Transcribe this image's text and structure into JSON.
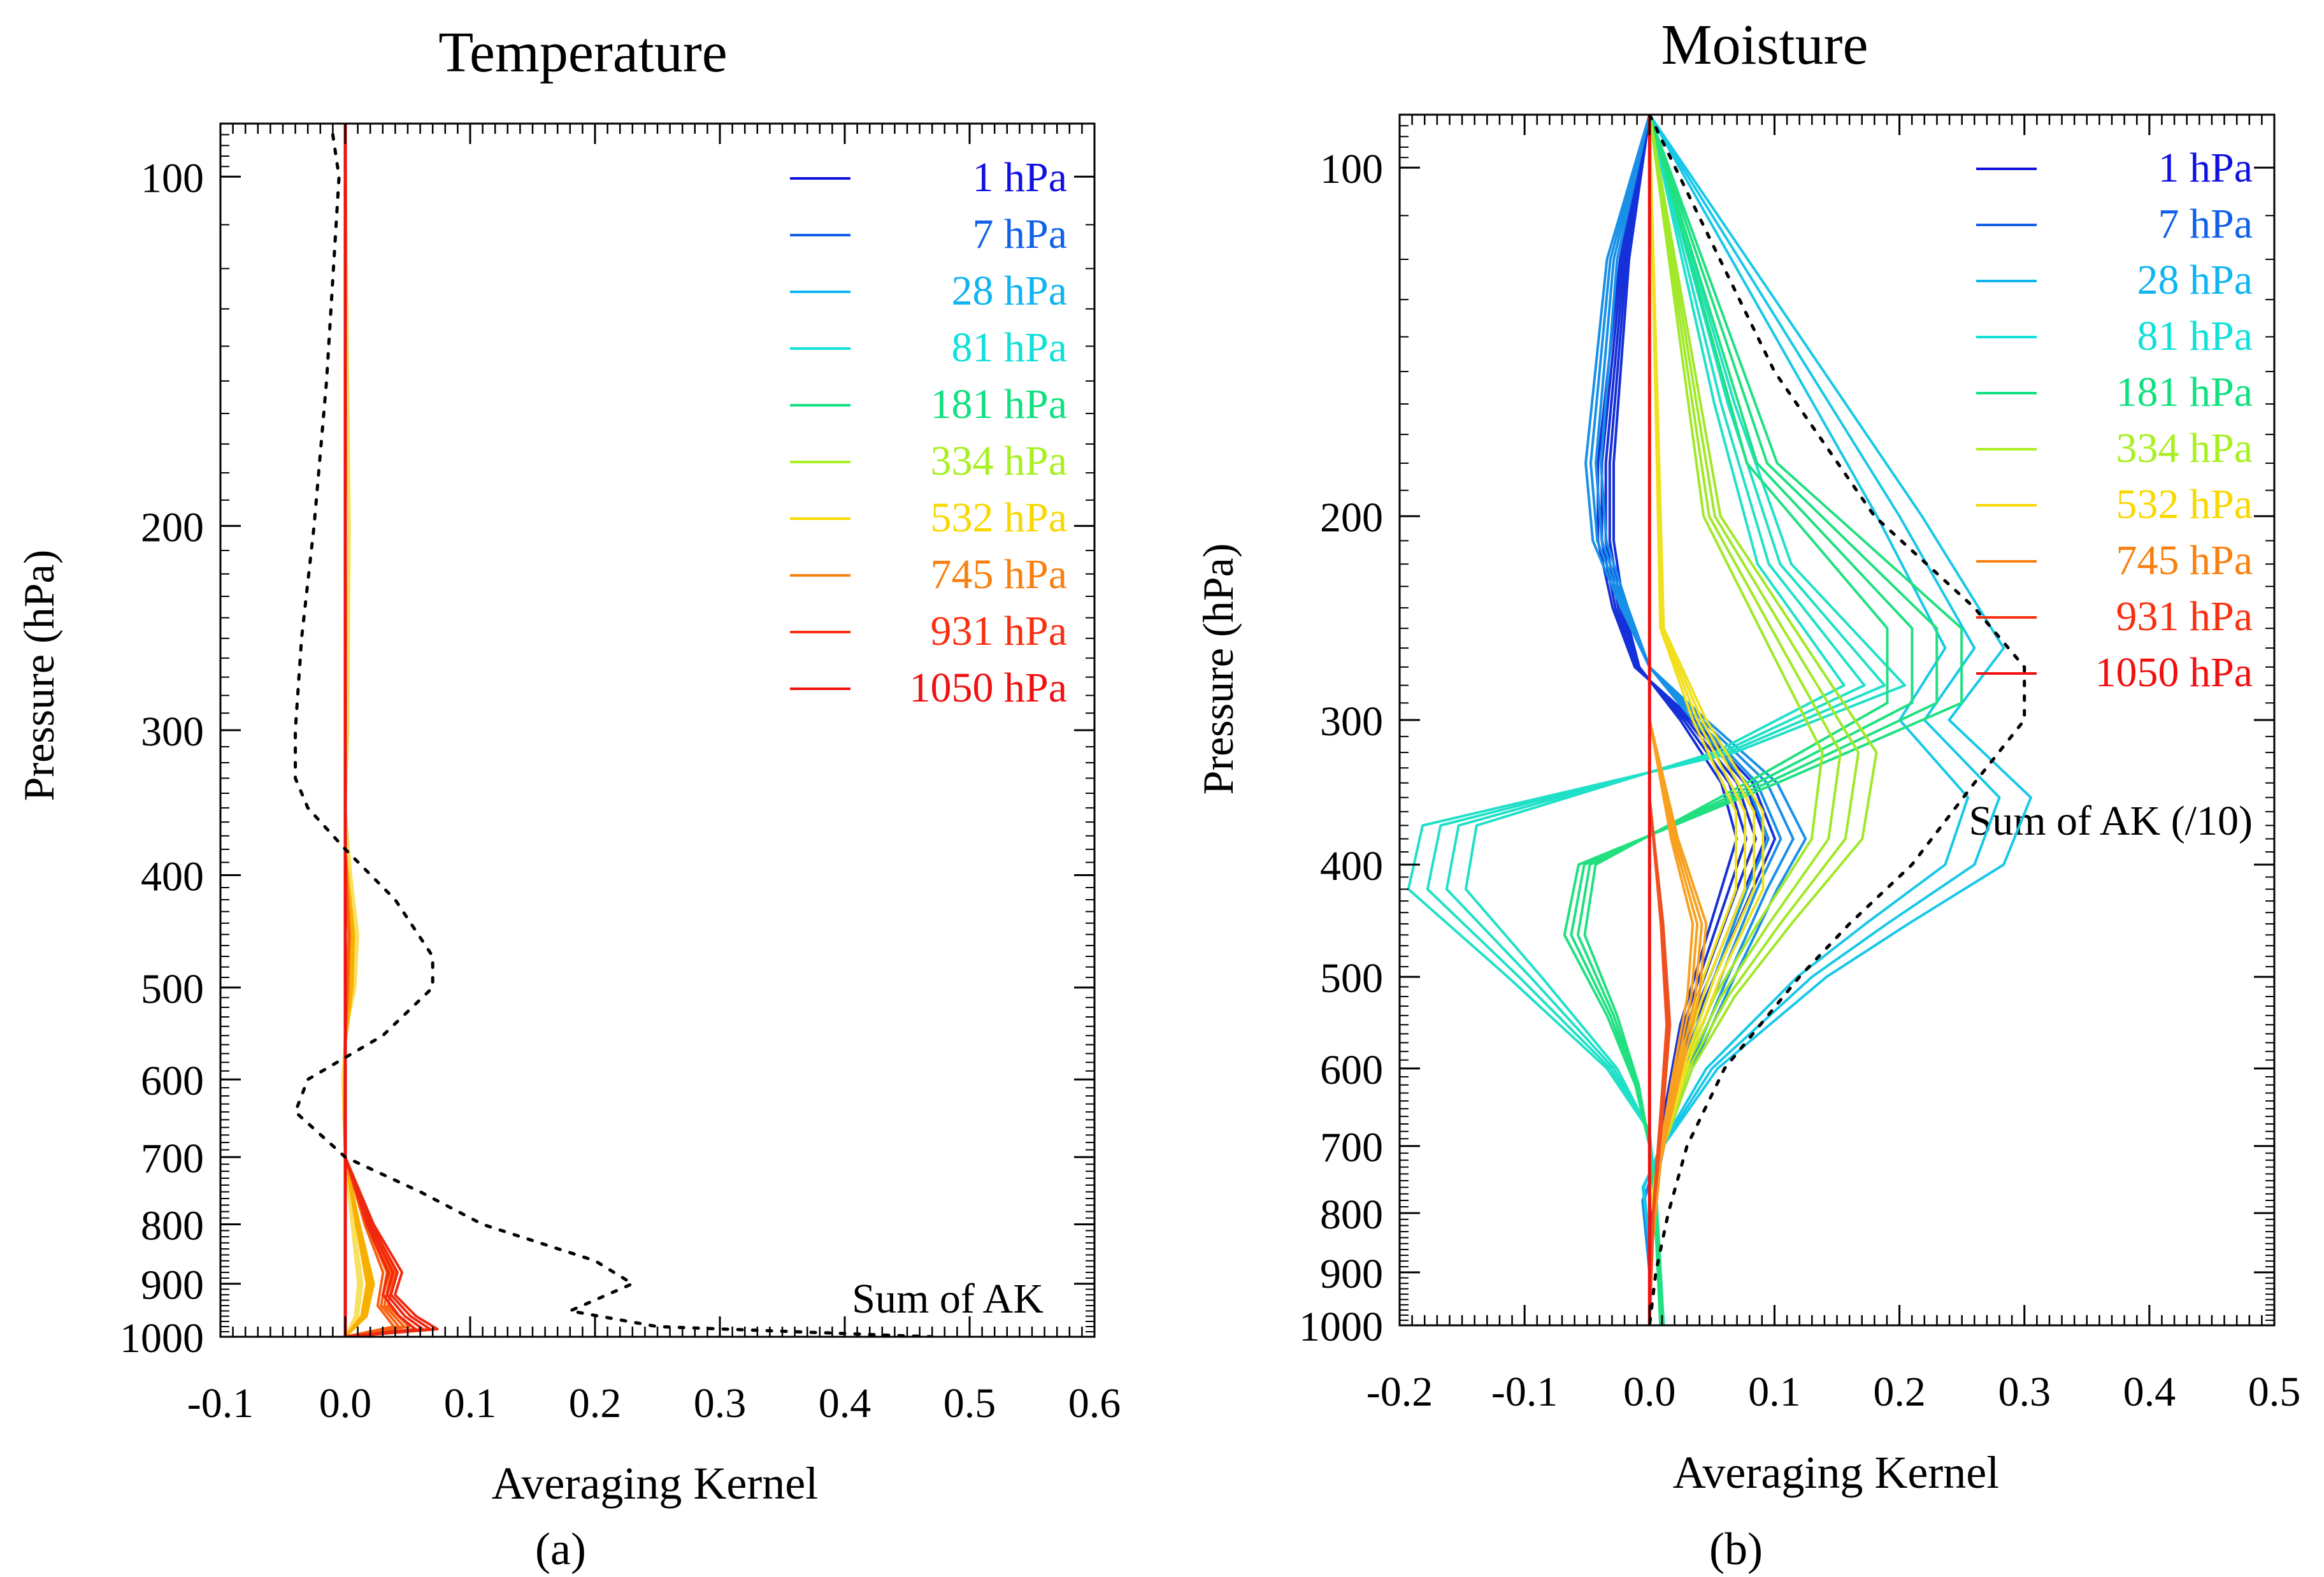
{
  "chart_data": [
    {
      "id": "temperature",
      "type": "line",
      "title": "Temperature",
      "panel_label": "(a)",
      "xlabel": "Averaging Kernel",
      "ylabel": "Pressure (hPa)",
      "xlim": [
        -0.1,
        0.6
      ],
      "ylim": [
        1000,
        90
      ],
      "yscale": "log",
      "x_ticks": [
        "-0.1",
        "0.0",
        "0.1",
        "0.2",
        "0.3",
        "0.4",
        "0.5",
        "0.6"
      ],
      "y_ticks": [
        "100",
        "200",
        "300",
        "400",
        "500",
        "600",
        "700",
        "800",
        "900",
        "1000"
      ],
      "legend_position": "top-right",
      "legend": [
        {
          "label": "1 hPa",
          "color": "#1010e0"
        },
        {
          "label": "7 hPa",
          "color": "#1060e8"
        },
        {
          "label": "28 hPa",
          "color": "#10b4f0"
        },
        {
          "label": "81 hPa",
          "color": "#10e0d8"
        },
        {
          "label": "181 hPa",
          "color": "#10e080"
        },
        {
          "label": "334 hPa",
          "color": "#a8f020"
        },
        {
          "label": "532 hPa",
          "color": "#f8d800"
        },
        {
          "label": "745 hPa",
          "color": "#f88010"
        },
        {
          "label": "931 hPa",
          "color": "#f83010"
        },
        {
          "label": "1050 hPa",
          "color": "#f01010"
        }
      ],
      "sum_label": "Sum of AK",
      "sum_curve": {
        "p": [
          92,
          100,
          150,
          200,
          250,
          300,
          330,
          350,
          380,
          420,
          470,
          500,
          550,
          600,
          640,
          700,
          750,
          800,
          860,
          900,
          950,
          980,
          1000
        ],
        "x": [
          -0.01,
          -0.005,
          -0.015,
          -0.025,
          -0.035,
          -0.04,
          -0.04,
          -0.03,
          0.0,
          0.04,
          0.07,
          0.07,
          0.03,
          -0.03,
          -0.04,
          0.0,
          0.06,
          0.11,
          0.2,
          0.23,
          0.18,
          0.25,
          0.47
        ]
      },
      "kernel_groups": [
        {
          "color": "#f8e060",
          "count": 4,
          "p": [
            92,
            200,
            300,
            350,
            400,
            450,
            500,
            550,
            600,
            700,
            800,
            900,
            960,
            1000
          ],
          "x": [
            0.0,
            0.003,
            0.002,
            0.0,
            0.004,
            0.009,
            0.007,
            0.0,
            -0.002,
            0.0,
            0.006,
            0.012,
            0.009,
            0.0
          ]
        },
        {
          "color": "#f8b000",
          "count": 4,
          "p": [
            92,
            300,
            380,
            450,
            500,
            560,
            650,
            700,
            800,
            900,
            960,
            1000
          ],
          "x": [
            0.0,
            0.0,
            0.0,
            0.006,
            0.005,
            0.0,
            -0.001,
            0.0,
            0.01,
            0.02,
            0.015,
            0.0
          ]
        },
        {
          "color": "#f86010",
          "count": 4,
          "p": [
            92,
            380,
            450,
            500,
            550,
            700,
            800,
            880,
            940,
            980,
            1000
          ],
          "x": [
            0.0,
            0.0,
            0.003,
            0.002,
            0.0,
            0.0,
            0.018,
            0.035,
            0.03,
            0.045,
            0.0
          ]
        },
        {
          "color": "#f02810",
          "count": 4,
          "p": [
            92,
            400,
            700,
            800,
            880,
            920,
            960,
            985,
            1000
          ],
          "x": [
            0.0,
            0.0,
            0.0,
            0.02,
            0.04,
            0.035,
            0.05,
            0.065,
            0.0
          ]
        }
      ],
      "vertical_line": {
        "x": 0.0,
        "color": "#f01010"
      }
    },
    {
      "id": "moisture",
      "type": "line",
      "title": "Moisture",
      "panel_label": "(b)",
      "xlabel": "Averaging Kernel",
      "ylabel": "Pressure (hPa)",
      "xlim": [
        -0.2,
        0.5
      ],
      "ylim": [
        1000,
        90
      ],
      "yscale": "log",
      "x_ticks": [
        "-0.2",
        "-0.1",
        "0.0",
        "0.1",
        "0.2",
        "0.3",
        "0.4",
        "0.5"
      ],
      "y_ticks": [
        "100",
        "200",
        "300",
        "400",
        "500",
        "600",
        "700",
        "800",
        "900",
        "1000"
      ],
      "legend_position": "top-right",
      "legend": [
        {
          "label": "1 hPa",
          "color": "#1010e0"
        },
        {
          "label": "7 hPa",
          "color": "#1060e8"
        },
        {
          "label": "28 hPa",
          "color": "#10b4f0"
        },
        {
          "label": "81 hPa",
          "color": "#10e0d8"
        },
        {
          "label": "181 hPa",
          "color": "#10e080"
        },
        {
          "label": "334 hPa",
          "color": "#a8f020"
        },
        {
          "label": "532 hPa",
          "color": "#f8d800"
        },
        {
          "label": "745 hPa",
          "color": "#f88010"
        },
        {
          "label": "931 hPa",
          "color": "#f83010"
        },
        {
          "label": "1050 hPa",
          "color": "#f01010"
        }
      ],
      "sum_label": "Sum of AK (/10)",
      "sum_curve": {
        "p": [
          90,
          150,
          200,
          240,
          270,
          300,
          340,
          400,
          450,
          500,
          600,
          700,
          800,
          900,
          1000
        ],
        "x": [
          0.0,
          0.1,
          0.18,
          0.26,
          0.3,
          0.3,
          0.26,
          0.21,
          0.16,
          0.12,
          0.06,
          0.03,
          0.015,
          0.005,
          0.0
        ]
      },
      "kernel_groups": [
        {
          "color": "#1530d8",
          "count": 5,
          "p": [
            90,
            120,
            180,
            210,
            240,
            270,
            300,
            340,
            380,
            420,
            480,
            550,
            650,
            750,
            850,
            950,
            1000
          ],
          "x": [
            0.0,
            -0.02,
            -0.035,
            -0.035,
            -0.025,
            -0.01,
            0.03,
            0.07,
            0.085,
            0.07,
            0.05,
            0.03,
            0.015,
            0.005,
            0.0,
            0.0,
            0.0
          ]
        },
        {
          "color": "#1890e8",
          "count": 4,
          "p": [
            90,
            120,
            180,
            210,
            240,
            270,
            300,
            340,
            380,
            420,
            500,
            600,
            700,
            780,
            900,
            1000
          ],
          "x": [
            0.0,
            -0.03,
            -0.045,
            -0.04,
            -0.02,
            0.0,
            0.04,
            0.09,
            0.11,
            0.09,
            0.06,
            0.03,
            0.01,
            -0.005,
            0.0,
            0.0
          ]
        },
        {
          "color": "#18c8e8",
          "count": 3,
          "p": [
            90,
            200,
            260,
            300,
            350,
            400,
            450,
            500,
            600,
            700,
            760,
            850,
            1000
          ],
          "x": [
            0.0,
            0.2,
            0.26,
            0.22,
            0.28,
            0.26,
            0.19,
            0.13,
            0.05,
            0.01,
            -0.005,
            0.0,
            0.0
          ]
        },
        {
          "color": "#20e0c8",
          "count": 4,
          "p": [
            90,
            160,
            220,
            280,
            320,
            370,
            420,
            500,
            600,
            680,
            780,
            1000
          ],
          "x": [
            0.0,
            0.06,
            0.1,
            0.18,
            0.06,
            -0.16,
            -0.17,
            -0.1,
            -0.03,
            0.0,
            0.005,
            0.01
          ]
        },
        {
          "color": "#20e080",
          "count": 4,
          "p": [
            90,
            180,
            250,
            290,
            340,
            400,
            460,
            540,
            620,
            700,
            800,
            1000
          ],
          "x": [
            0.0,
            0.09,
            0.22,
            0.22,
            0.09,
            -0.05,
            -0.06,
            -0.03,
            -0.01,
            0.0,
            0.005,
            0.01
          ]
        },
        {
          "color": "#a0e828",
          "count": 4,
          "p": [
            90,
            200,
            270,
            320,
            380,
            450,
            520,
            600,
            700,
            800,
            1000
          ],
          "x": [
            0.0,
            0.05,
            0.12,
            0.16,
            0.15,
            0.1,
            0.06,
            0.03,
            0.01,
            0.0,
            0.0
          ]
        },
        {
          "color": "#f0e020",
          "count": 4,
          "p": [
            90,
            250,
            300,
            360,
            420,
            500,
            580,
            700,
            800,
            1000
          ],
          "x": [
            0.0,
            0.01,
            0.04,
            0.08,
            0.08,
            0.05,
            0.03,
            0.01,
            0.0,
            0.0
          ]
        },
        {
          "color": "#f8a020",
          "count": 4,
          "p": [
            90,
            300,
            380,
            450,
            520,
            620,
            720,
            900,
            1000
          ],
          "x": [
            0.0,
            0.0,
            0.02,
            0.04,
            0.035,
            0.02,
            0.008,
            0.0,
            0.0
          ]
        },
        {
          "color": "#f05020",
          "count": 3,
          "p": [
            90,
            350,
            450,
            550,
            650,
            800,
            1000
          ],
          "x": [
            0.0,
            0.0,
            0.01,
            0.015,
            0.01,
            0.003,
            0.0
          ]
        }
      ],
      "vertical_line": {
        "x": 0.0,
        "color": "#f01010"
      }
    }
  ]
}
